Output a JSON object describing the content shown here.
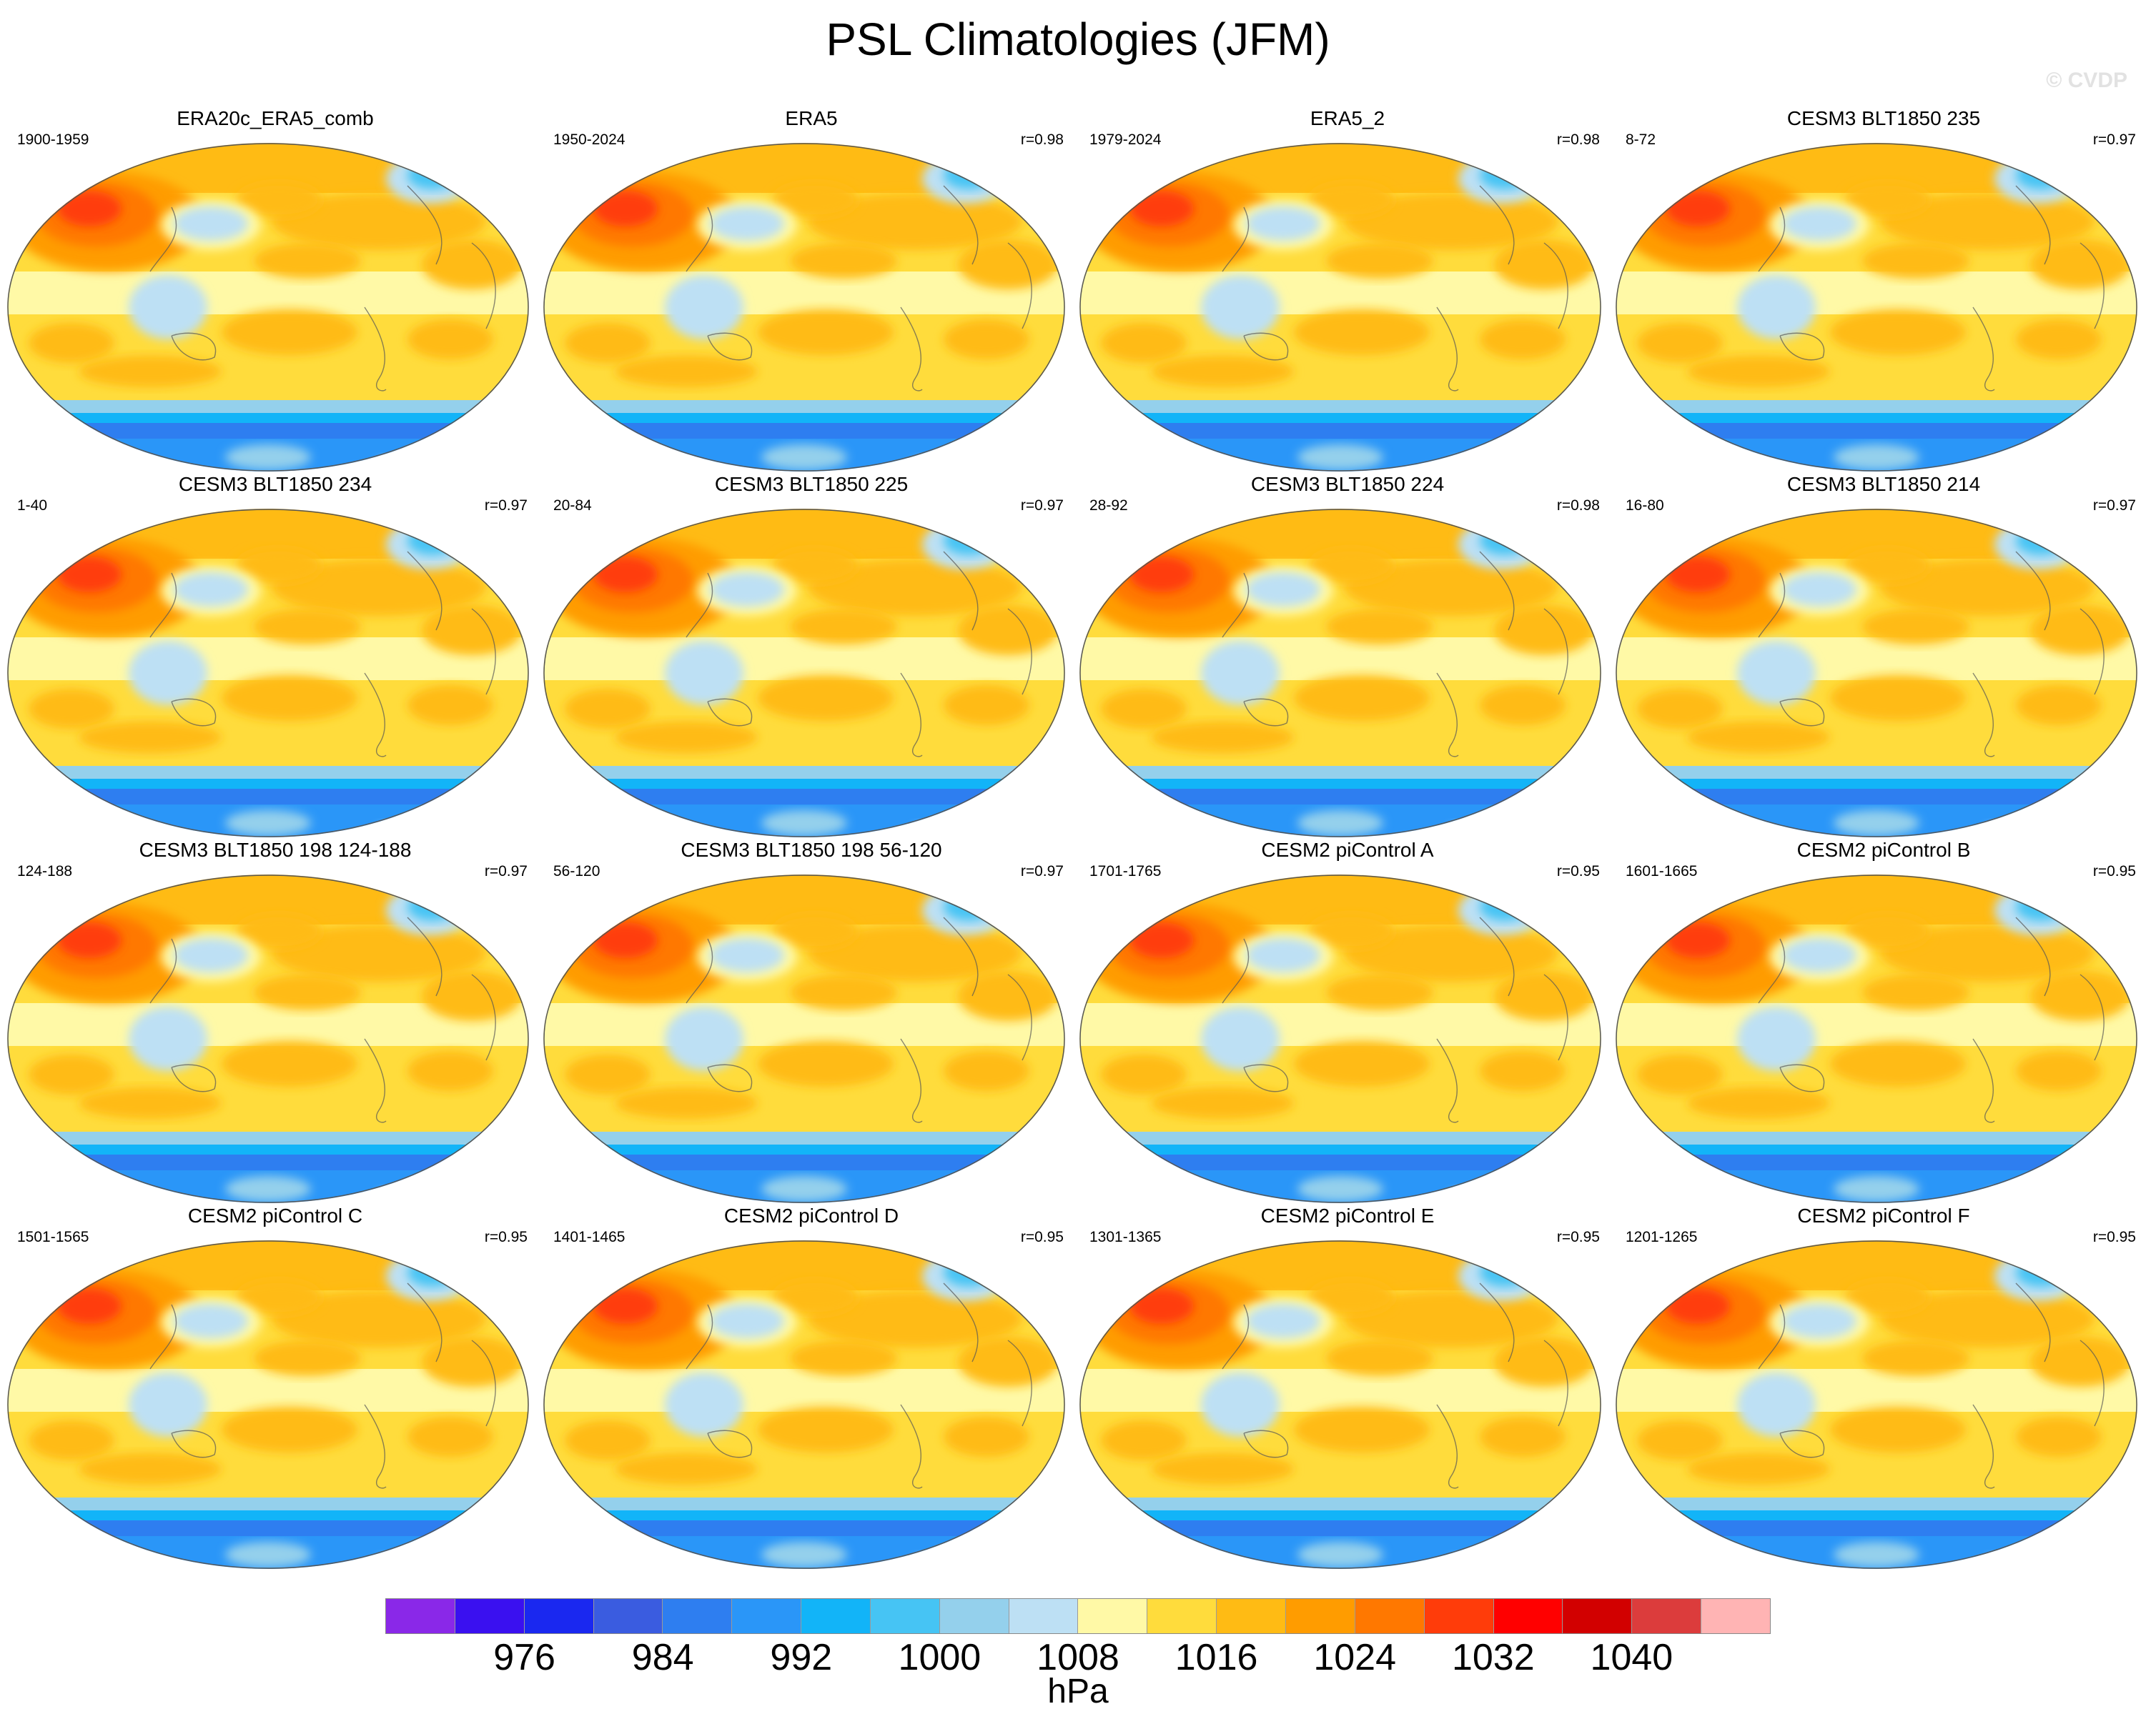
{
  "title": "PSL Climatologies (JFM)",
  "watermark": "© CVDP",
  "panels": [
    {
      "title": "ERA20c_ERA5_comb",
      "years": "1900-1959",
      "r": ""
    },
    {
      "title": "ERA5",
      "years": "1950-2024",
      "r": "r=0.98"
    },
    {
      "title": "ERA5_2",
      "years": "1979-2024",
      "r": "r=0.98"
    },
    {
      "title": "CESM3 BLT1850 235",
      "years": "8-72",
      "r": "r=0.97"
    },
    {
      "title": "CESM3 BLT1850 234",
      "years": "1-40",
      "r": "r=0.97"
    },
    {
      "title": "CESM3 BLT1850 225",
      "years": "20-84",
      "r": "r=0.97"
    },
    {
      "title": "CESM3 BLT1850 224",
      "years": "28-92",
      "r": "r=0.98"
    },
    {
      "title": "CESM3 BLT1850 214",
      "years": "16-80",
      "r": "r=0.97"
    },
    {
      "title": "CESM3 BLT1850 198 124-188",
      "years": "124-188",
      "r": "r=0.97"
    },
    {
      "title": "CESM3 BLT1850 198 56-120",
      "years": "56-120",
      "r": "r=0.97"
    },
    {
      "title": "CESM2 piControl A",
      "years": "1701-1765",
      "r": "r=0.95"
    },
    {
      "title": "CESM2 piControl B",
      "years": "1601-1665",
      "r": "r=0.95"
    },
    {
      "title": "CESM2 piControl C",
      "years": "1501-1565",
      "r": "r=0.95"
    },
    {
      "title": "CESM2 piControl D",
      "years": "1401-1465",
      "r": "r=0.95"
    },
    {
      "title": "CESM2 piControl E",
      "years": "1301-1365",
      "r": "r=0.95"
    },
    {
      "title": "CESM2 piControl F",
      "years": "1201-1265",
      "r": "r=0.95"
    }
  ],
  "colorbar": {
    "colors": [
      "#8a28e8",
      "#3a10f0",
      "#1a28f0",
      "#3a5ce0",
      "#2e7ef0",
      "#2a96f8",
      "#12b4f8",
      "#46c4f4",
      "#94d0ec",
      "#bde0f4",
      "#fff9a6",
      "#ffdc3c",
      "#ffbb14",
      "#ff9c00",
      "#ff7800",
      "#ff3c0a",
      "#ff0000",
      "#d20000",
      "#dc3c3c",
      "#ffb4b4"
    ],
    "ticks": [
      "976",
      "984",
      "992",
      "1000",
      "1008",
      "1016",
      "1024",
      "1032",
      "1040"
    ],
    "units": "hPa"
  }
}
